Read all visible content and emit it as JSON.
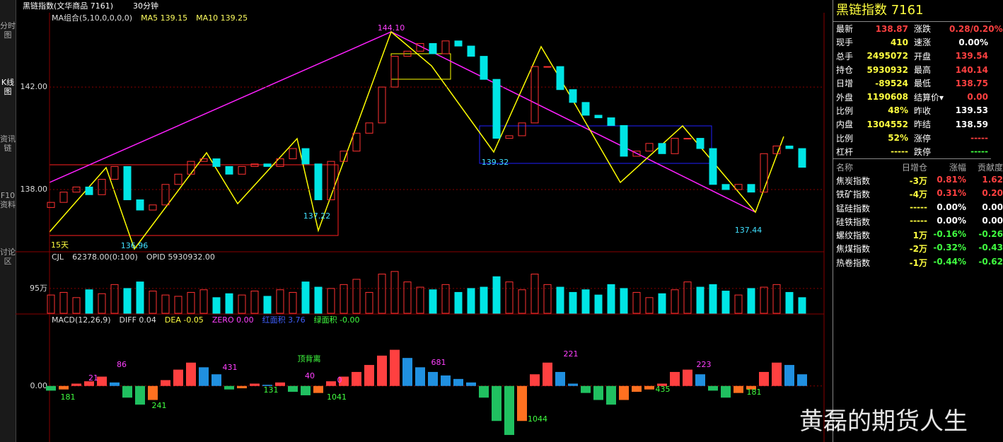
{
  "toolbar": {
    "title": "黑链指数(文华商品 7161)",
    "period": "30分钟"
  },
  "sidebar": [
    "分时图",
    "K线图",
    "资讯链",
    "F10资料",
    "讨论区"
  ],
  "chart_data": [
    {
      "type": "candlestick",
      "indicator": "MA组合(5,10,0,0,0,0)",
      "ma5": "MA5 139.15",
      "ma10": "MA10 139.25",
      "range_label": "15天",
      "up_color": "#ff3232",
      "down_color": "#00e5e5",
      "open": [
        137.3,
        137.5,
        137.9,
        138.1,
        137.8,
        138.4,
        138.9,
        137.6,
        137.2,
        137.4,
        138.2,
        138.6,
        139.1,
        139.2,
        138.9,
        138.6,
        138.9,
        139.0,
        138.9,
        139.2,
        139.6,
        139.0,
        137.6,
        139.1,
        139.5,
        140.2,
        140.6,
        142.0,
        143.2,
        143.4,
        143.7,
        143.3,
        143.8,
        143.6,
        143.2,
        142.3,
        140.0,
        140.1,
        140.6,
        142.8,
        142.8,
        141.9,
        141.4,
        140.9,
        140.8,
        140.5,
        139.3,
        139.5,
        139.8,
        139.4,
        140.0,
        140.0,
        139.6,
        138.2,
        138.0,
        138.2,
        137.9,
        139.4,
        139.7,
        139.6
      ],
      "close": [
        137.5,
        137.9,
        138.1,
        137.8,
        138.4,
        138.9,
        137.6,
        137.2,
        137.4,
        138.2,
        138.6,
        139.1,
        139.2,
        138.9,
        138.6,
        138.9,
        139.0,
        138.9,
        139.2,
        139.6,
        139.0,
        137.6,
        139.1,
        139.5,
        140.2,
        140.6,
        142.0,
        143.2,
        143.4,
        143.7,
        143.3,
        143.8,
        143.6,
        143.2,
        142.3,
        140.0,
        140.1,
        140.6,
        142.8,
        142.8,
        141.9,
        141.4,
        140.9,
        140.8,
        140.5,
        139.3,
        139.5,
        139.8,
        139.4,
        140.0,
        140.0,
        139.6,
        138.2,
        138.0,
        138.2,
        137.9,
        139.4,
        139.7,
        139.6,
        138.87
      ],
      "ylim": [
        135.6,
        144.9
      ],
      "yticks": [
        {
          "value": 142,
          "label": "142.00"
        },
        {
          "value": 138,
          "label": "138.00"
        }
      ],
      "annotations": [
        "144.10",
        "136.96",
        "137.22",
        "139.32",
        "137.44"
      ]
    },
    {
      "type": "bar",
      "indicator": "CJL",
      "params": "62378.00(0:100)",
      "opid": "OPID 5930932.00",
      "values": [
        70,
        80,
        60,
        90,
        75,
        110,
        95,
        120,
        85,
        70,
        65,
        80,
        90,
        60,
        75,
        70,
        85,
        65,
        90,
        80,
        120,
        100,
        95,
        110,
        130,
        80,
        150,
        160,
        120,
        100,
        90,
        110,
        80,
        95,
        100,
        140,
        120,
        90,
        150,
        110,
        100,
        80,
        90,
        70,
        110,
        95,
        80,
        60,
        75,
        90,
        120,
        100,
        110,
        85,
        70,
        95,
        100,
        110,
        80,
        60
      ],
      "ylim": [
        0,
        230
      ],
      "yticks": [
        {
          "value": 95,
          "label": "95万"
        }
      ]
    },
    {
      "type": "bar",
      "indicator": "MACD(12,26,9)",
      "diff": "DIFF 0.04",
      "dea": "DEA -0.05",
      "zero": "ZERO 0.00",
      "red_area": "红面积 3.76",
      "green_area": "绿面积 -0.00",
      "values": [
        -0.04,
        -0.03,
        0.02,
        0.04,
        0.08,
        0.03,
        -0.1,
        -0.16,
        -0.12,
        0.05,
        0.14,
        0.2,
        0.16,
        0.1,
        -0.03,
        -0.02,
        0.02,
        0.01,
        0.03,
        -0.05,
        -0.08,
        -0.06,
        0.04,
        0.08,
        0.12,
        0.18,
        0.26,
        0.31,
        0.24,
        0.16,
        0.12,
        0.09,
        0.06,
        0.03,
        -0.1,
        -0.3,
        -0.42,
        -0.3,
        0.1,
        0.2,
        0.12,
        0.02,
        -0.06,
        -0.12,
        -0.16,
        -0.12,
        -0.05,
        -0.03,
        0.02,
        0.12,
        0.14,
        0.1,
        -0.04,
        -0.1,
        -0.06,
        -0.03,
        0.12,
        0.2,
        0.18,
        0.1
      ],
      "ylim": [
        -0.45,
        0.55
      ],
      "yticks": [
        {
          "value": 0,
          "label": "0.00"
        }
      ],
      "annotations": [
        "181",
        "21",
        "86",
        "241",
        "431",
        "131",
        "顶背离",
        "40",
        "0",
        "1041",
        "681",
        "221",
        "1044",
        "435",
        "223",
        "181"
      ]
    }
  ],
  "quote": {
    "name": "黑链指数",
    "code": "7161",
    "rows": [
      [
        "最新",
        "138.87",
        "#ff4040",
        "涨跌",
        "0.28/0.20%",
        "#ff4040"
      ],
      [
        "现手",
        "410",
        "#ffff40",
        "速涨",
        "0.00%",
        "#ffffff"
      ],
      [
        "总手",
        "2495072",
        "#ffff40",
        "开盘",
        "139.54",
        "#ff4040"
      ],
      [
        "持仓",
        "5930932",
        "#ffff40",
        "最高",
        "140.14",
        "#ff4040"
      ],
      [
        "日增",
        "-89524",
        "#ffff40",
        "最低",
        "138.75",
        "#ff4040"
      ],
      [
        "外盘",
        "1190608",
        "#ffff40",
        "结算价▾",
        "0.00",
        "#ff4040"
      ],
      [
        "比例",
        "48%",
        "#ffff40",
        "昨收",
        "139.53",
        "#ffffff"
      ],
      [
        "内盘",
        "1304552",
        "#ffff40",
        "昨结",
        "138.59",
        "#ffffff"
      ],
      [
        "比例",
        "52%",
        "#ffff40",
        "涨停",
        "-----",
        "#ff4040"
      ],
      [
        "杠杆",
        "-----",
        "#ffff40",
        "跌停",
        "-----",
        "#40ff40"
      ]
    ]
  },
  "related": {
    "header": [
      "名称",
      "日增仓",
      "涨幅",
      "贡献度"
    ],
    "rows": [
      [
        "焦炭指数",
        "-3万",
        "0.81%",
        "1.62",
        "#ff4040"
      ],
      [
        "铁矿指数",
        "-4万",
        "0.31%",
        "0.20",
        "#ff4040"
      ],
      [
        "锰硅指数",
        "-----",
        "0.00%",
        "0.00",
        "#ffffff"
      ],
      [
        "硅铁指数",
        "-----",
        "0.00%",
        "0.00",
        "#ffffff"
      ],
      [
        "螺纹指数",
        "1万",
        "-0.16%",
        "-0.26",
        "#40ff40"
      ],
      [
        "焦煤指数",
        "-2万",
        "-0.32%",
        "-0.43",
        "#40ff40"
      ],
      [
        "热卷指数",
        "-1万",
        "-0.44%",
        "-0.62",
        "#40ff40"
      ]
    ]
  },
  "watermark": "黄磊的期货人生"
}
